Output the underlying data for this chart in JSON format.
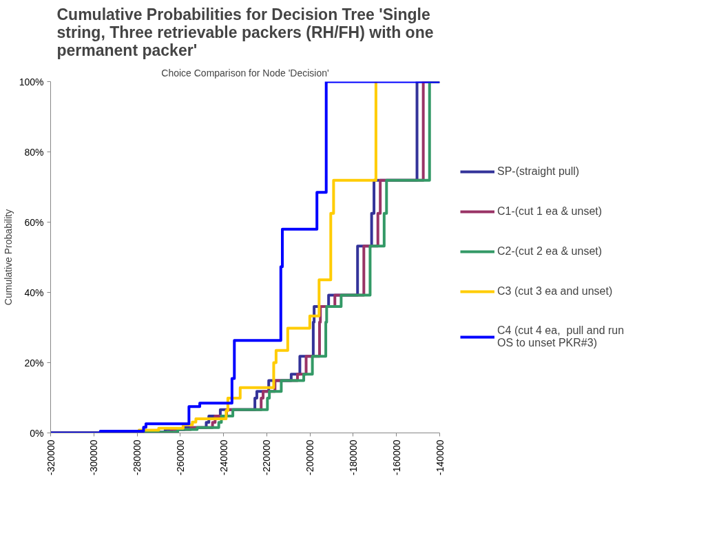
{
  "chart_data": {
    "type": "step",
    "title": "Cumulative Probabilities for Decision Tree 'Single string, Three retrievable packers (RH/FH) with one permanent packer'",
    "subtitle": "Choice Comparison for Node 'Decision'",
    "ylabel": "Cumulative Probability",
    "xlim": [
      -320000,
      -140000
    ],
    "xticks": [
      -320000,
      -300000,
      -280000,
      -260000,
      -240000,
      -220000,
      -200000,
      -180000,
      -160000,
      -140000
    ],
    "ylim": [
      0,
      100
    ],
    "yticks": [
      {
        "value": 0,
        "label": "0%"
      },
      {
        "value": 20,
        "label": "20%"
      },
      {
        "value": 40,
        "label": "40%"
      },
      {
        "value": 60,
        "label": "60%"
      },
      {
        "value": 80,
        "label": "80%"
      },
      {
        "value": 100,
        "label": "100%"
      }
    ],
    "grid": false,
    "legend": "right",
    "series": [
      {
        "name": "SP-(straight pull)",
        "color": "#333399",
        "x": [
          -320000,
          -290000,
          -267000,
          -258000,
          -248000,
          -246800,
          -241500,
          -225500,
          -224600,
          -219100,
          -208700,
          -204700,
          -198500,
          -198100,
          -191400,
          -178000,
          -171500,
          -170400,
          -150500,
          -140000
        ],
        "values": [
          0,
          0.2,
          1.0,
          1.5,
          3.0,
          4.8,
          6.6,
          9.9,
          11.8,
          14.9,
          16.7,
          21.8,
          31.5,
          36,
          39.2,
          53.2,
          62.5,
          71.9,
          100,
          100
        ]
      },
      {
        "name": "C1-(cut 1 ea & unset)",
        "color": "#993366",
        "x": [
          -320000,
          -287100,
          -264100,
          -255100,
          -245100,
          -243900,
          -238600,
          -222600,
          -221700,
          -216200,
          -205800,
          -201800,
          -195600,
          -195200,
          -188500,
          -175100,
          -168600,
          -167500,
          -147600,
          -140000
        ],
        "values": [
          0,
          0.2,
          1.0,
          1.5,
          3.0,
          4.8,
          6.6,
          9.9,
          11.8,
          14.9,
          16.7,
          21.8,
          31.5,
          36,
          39.2,
          53.2,
          62.5,
          71.9,
          100,
          100
        ]
      },
      {
        "name": "C2-(cut 2 ea & unset)",
        "color": "#339966",
        "x": [
          -320000,
          -284200,
          -261200,
          -252200,
          -242200,
          -241000,
          -235700,
          -219700,
          -218800,
          -213300,
          -202900,
          -198900,
          -192700,
          -192300,
          -185600,
          -172200,
          -165700,
          -164600,
          -144700,
          -140000
        ],
        "values": [
          0,
          0.2,
          1.0,
          1.5,
          3.0,
          4.8,
          6.6,
          9.9,
          11.8,
          14.9,
          16.7,
          21.8,
          31.5,
          36,
          39.2,
          53.2,
          62.5,
          71.9,
          100,
          100
        ]
      },
      {
        "name": "C3 (cut 3 ea and unset)",
        "color": "#ffcc00",
        "x": [
          -320000,
          -279100,
          -270000,
          -258700,
          -254400,
          -252800,
          -238800,
          -238000,
          -232300,
          -216800,
          -215700,
          -210300,
          -200100,
          -195800,
          -190400,
          -189100,
          -169500
        ],
        "values": [
          0,
          0.8,
          1.3,
          2.3,
          3.1,
          4.0,
          6.3,
          9.9,
          12.9,
          20,
          23.5,
          29.8,
          33.3,
          43.6,
          62.5,
          71.9,
          100
        ]
      },
      {
        "name": "C4 (cut 4 ea,  pull and run OS to unset PKR#3)",
        "color": "#0000ff",
        "x": [
          -320000,
          -297000,
          -277000,
          -275900,
          -256000,
          -251000,
          -236100,
          -235000,
          -213500,
          -212800,
          -196800,
          -192500,
          -140000
        ],
        "values": [
          0,
          0.5,
          1.6,
          2.6,
          7.5,
          8.5,
          15.5,
          26.3,
          47.3,
          58,
          68.5,
          100,
          100
        ]
      }
    ]
  }
}
